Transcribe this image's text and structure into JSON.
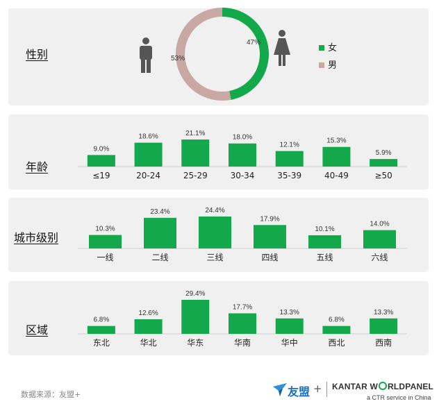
{
  "colors": {
    "green": "#13a94a",
    "pink": "#c9a8a4",
    "panel": "#f0f0f0",
    "person": "#555555"
  },
  "sections": {
    "gender": {
      "title": "性别"
    },
    "age": {
      "title": "年龄"
    },
    "city": {
      "title": "城市级别"
    },
    "region": {
      "title": "区域"
    }
  },
  "chart_data": [
    {
      "type": "pie",
      "variant": "donut",
      "labels": [
        "女",
        "男"
      ],
      "values": [
        47,
        53
      ],
      "value_labels": [
        "47%",
        "53%"
      ],
      "legend": [
        "女",
        "男"
      ],
      "legend_position": "right"
    },
    {
      "type": "bar",
      "categories": [
        "≤19",
        "20-24",
        "25-29",
        "30-34",
        "35-39",
        "40-49",
        "≥50"
      ],
      "values": [
        9.0,
        18.6,
        21.1,
        18.0,
        12.1,
        15.3,
        5.9
      ],
      "value_labels": [
        "9.0%",
        "18.6%",
        "21.1%",
        "18.0%",
        "12.1%",
        "15.3%",
        "5.9%"
      ]
    },
    {
      "type": "bar",
      "categories": [
        "一线",
        "二线",
        "三线",
        "四线",
        "五线",
        "六线"
      ],
      "values": [
        10.3,
        23.4,
        24.4,
        17.9,
        10.1,
        14.0
      ],
      "value_labels": [
        "10.3%",
        "23.4%",
        "24.4%",
        "17.9%",
        "10.1%",
        "14.0%"
      ]
    },
    {
      "type": "bar",
      "categories": [
        "东北",
        "华北",
        "华东",
        "华南",
        "华中",
        "西北",
        "西南"
      ],
      "values": [
        6.8,
        12.6,
        29.4,
        17.7,
        13.3,
        6.8,
        13.3
      ],
      "value_labels": [
        "6.8%",
        "12.6%",
        "29.4%",
        "17.7%",
        "13.3%",
        "6.8%",
        "13.3%"
      ]
    }
  ],
  "footer": {
    "source": "数据来源：友盟+",
    "umeng_brand": "友盟",
    "plus_sign": "+",
    "kantar_pre": "KANTAR W",
    "kantar_post": "RLDPANEL",
    "ctr_tagline": "a CTR service in China"
  }
}
